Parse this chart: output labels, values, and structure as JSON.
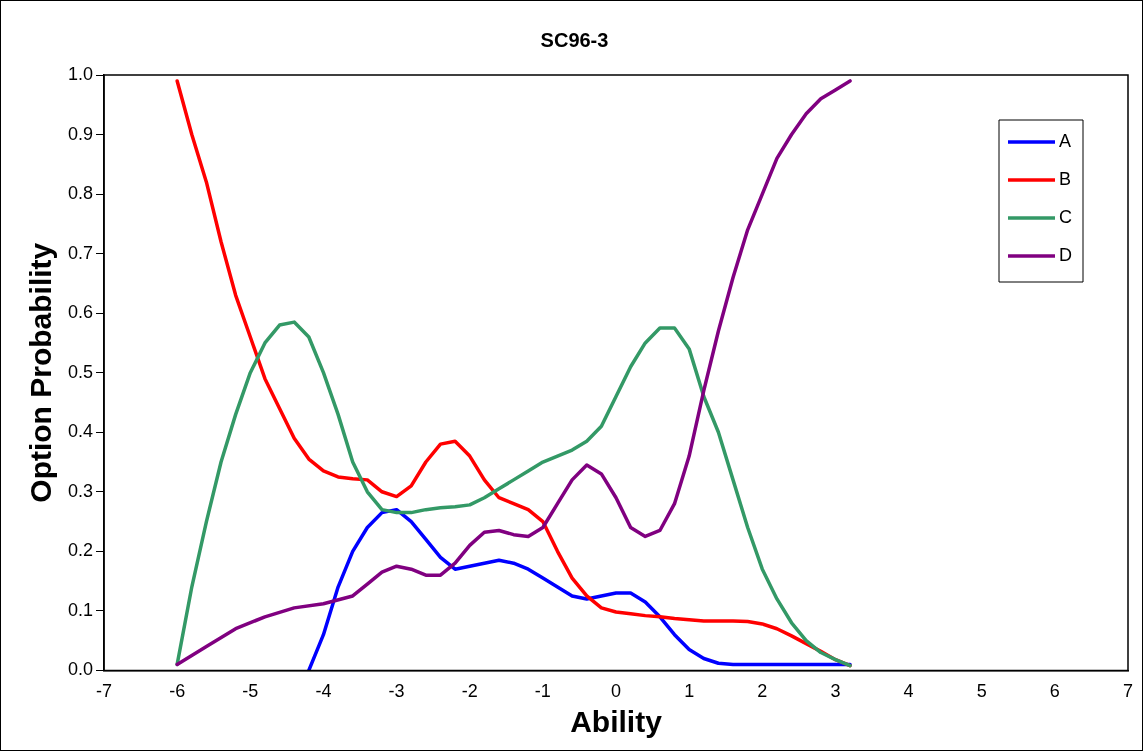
{
  "chart_data": {
    "type": "line",
    "title": "SC96-3",
    "xlabel": "Ability",
    "ylabel": "Option Probability",
    "xlim": [
      -7,
      7
    ],
    "xticks": [
      -7,
      -6,
      -5,
      -4,
      -3,
      -2,
      -1,
      0,
      1,
      2,
      3,
      4,
      5,
      6,
      7
    ],
    "ylim": [
      0,
      1
    ],
    "yticks": [
      {
        "value": 0,
        "label": "0.0"
      },
      {
        "value": 0.1,
        "label": "0.1"
      },
      {
        "value": 0.2,
        "label": "0.2"
      },
      {
        "value": 0.3,
        "label": "0.3"
      },
      {
        "value": 0.4,
        "label": "0.4"
      },
      {
        "value": 0.5,
        "label": "0.5"
      },
      {
        "value": 0.6,
        "label": "0.6"
      },
      {
        "value": 0.7,
        "label": "0.7"
      },
      {
        "value": 0.8,
        "label": "0.8"
      },
      {
        "value": 0.9,
        "label": "0.9"
      },
      {
        "value": 1,
        "label": "1.0"
      }
    ],
    "grid": false,
    "legend": "top right",
    "marker": "none",
    "line_style": "solid",
    "series": [
      {
        "name": "A",
        "color": "#0000ff",
        "x": [
          -4.2,
          -4.0,
          -3.8,
          -3.6,
          -3.4,
          -3.2,
          -3.0,
          -2.8,
          -2.6,
          -2.4,
          -2.2,
          -2.0,
          -1.8,
          -1.6,
          -1.4,
          -1.2,
          -1.0,
          -0.8,
          -0.6,
          -0.4,
          -0.2,
          0,
          0.2,
          0.4,
          0.6,
          0.8,
          1.0,
          1.2,
          1.4,
          1.6,
          2.0,
          2.4,
          2.8,
          3.2
        ],
        "values": [
          0,
          0.06,
          0.14,
          0.2,
          0.24,
          0.265,
          0.27,
          0.25,
          0.22,
          0.19,
          0.17,
          0.175,
          0.18,
          0.185,
          0.18,
          0.17,
          0.155,
          0.14,
          0.125,
          0.12,
          0.125,
          0.13,
          0.13,
          0.115,
          0.09,
          0.06,
          0.035,
          0.02,
          0.012,
          0.01,
          0.01,
          0.01,
          0.01,
          0.01
        ]
      },
      {
        "name": "B",
        "color": "#ff0000",
        "x": [
          -6,
          -5.8,
          -5.6,
          -5.4,
          -5.2,
          -5.0,
          -4.8,
          -4.6,
          -4.4,
          -4.2,
          -4.0,
          -3.8,
          -3.6,
          -3.4,
          -3.2,
          -3.0,
          -2.8,
          -2.6,
          -2.4,
          -2.2,
          -2.0,
          -1.8,
          -1.6,
          -1.4,
          -1.2,
          -1.0,
          -0.8,
          -0.6,
          -0.4,
          -0.2,
          0,
          0.2,
          0.4,
          0.6,
          0.8,
          1.0,
          1.2,
          1.4,
          1.6,
          1.8,
          2.0,
          2.2,
          2.4,
          2.6,
          2.8,
          3.0,
          3.2
        ],
        "values": [
          0.99,
          0.9,
          0.82,
          0.72,
          0.63,
          0.56,
          0.49,
          0.44,
          0.39,
          0.355,
          0.335,
          0.325,
          0.322,
          0.32,
          0.3,
          0.292,
          0.31,
          0.35,
          0.38,
          0.385,
          0.36,
          0.32,
          0.29,
          0.28,
          0.27,
          0.25,
          0.2,
          0.155,
          0.125,
          0.105,
          0.098,
          0.095,
          0.092,
          0.09,
          0.087,
          0.085,
          0.083,
          0.083,
          0.083,
          0.082,
          0.078,
          0.07,
          0.058,
          0.045,
          0.032,
          0.018,
          0.008
        ]
      },
      {
        "name": "C",
        "color": "#339966",
        "x": [
          -6,
          -5.8,
          -5.6,
          -5.4,
          -5.2,
          -5.0,
          -4.8,
          -4.6,
          -4.4,
          -4.2,
          -4.0,
          -3.8,
          -3.6,
          -3.4,
          -3.2,
          -3.0,
          -2.8,
          -2.6,
          -2.4,
          -2.2,
          -2.0,
          -1.8,
          -1.6,
          -1.4,
          -1.2,
          -1.0,
          -0.8,
          -0.6,
          -0.4,
          -0.2,
          0,
          0.2,
          0.4,
          0.6,
          0.8,
          1.0,
          1.2,
          1.4,
          1.6,
          1.8,
          2.0,
          2.2,
          2.4,
          2.6,
          2.8,
          3.0,
          3.2
        ],
        "values": [
          0.01,
          0.14,
          0.25,
          0.35,
          0.43,
          0.5,
          0.55,
          0.58,
          0.585,
          0.56,
          0.5,
          0.43,
          0.35,
          0.3,
          0.27,
          0.265,
          0.265,
          0.27,
          0.273,
          0.275,
          0.278,
          0.29,
          0.305,
          0.32,
          0.335,
          0.35,
          0.36,
          0.37,
          0.385,
          0.41,
          0.46,
          0.51,
          0.55,
          0.575,
          0.575,
          0.54,
          0.46,
          0.4,
          0.32,
          0.24,
          0.17,
          0.12,
          0.08,
          0.05,
          0.03,
          0.018,
          0.008
        ]
      },
      {
        "name": "D",
        "color": "#800080",
        "x": [
          -6,
          -5.6,
          -5.2,
          -4.8,
          -4.4,
          -4.0,
          -3.6,
          -3.4,
          -3.2,
          -3.0,
          -2.8,
          -2.6,
          -2.4,
          -2.2,
          -2.0,
          -1.8,
          -1.6,
          -1.4,
          -1.2,
          -1.0,
          -0.8,
          -0.6,
          -0.4,
          -0.2,
          0,
          0.2,
          0.4,
          0.6,
          0.8,
          1.0,
          1.2,
          1.4,
          1.6,
          1.8,
          2.0,
          2.2,
          2.4,
          2.6,
          2.8,
          3.0,
          3.2
        ],
        "values": [
          0.01,
          0.04,
          0.07,
          0.09,
          0.105,
          0.112,
          0.125,
          0.145,
          0.165,
          0.175,
          0.17,
          0.16,
          0.16,
          0.18,
          0.21,
          0.232,
          0.235,
          0.228,
          0.225,
          0.24,
          0.28,
          0.32,
          0.345,
          0.33,
          0.29,
          0.24,
          0.225,
          0.235,
          0.28,
          0.36,
          0.47,
          0.57,
          0.66,
          0.74,
          0.8,
          0.86,
          0.9,
          0.935,
          0.96,
          0.975,
          0.99
        ]
      }
    ]
  }
}
